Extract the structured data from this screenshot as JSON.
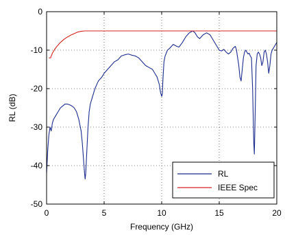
{
  "chart_data": {
    "type": "line",
    "xlabel": "Frequency (GHz)",
    "ylabel": "RL (dB)",
    "xlim": [
      0,
      20
    ],
    "ylim": [
      -50,
      0
    ],
    "xticks": [
      0,
      5,
      10,
      15,
      20
    ],
    "yticks": [
      0,
      -10,
      -20,
      -30,
      -40,
      -50
    ],
    "grid": true,
    "grid_style": "dotted",
    "legend_position": "bottom-right",
    "series": [
      {
        "name": "RL",
        "color": "#1a2a8c",
        "x": [
          0.0,
          0.1,
          0.2,
          0.3,
          0.4,
          0.5,
          0.6,
          0.8,
          1.0,
          1.2,
          1.4,
          1.6,
          1.8,
          2.0,
          2.2,
          2.4,
          2.6,
          2.8,
          3.0,
          3.1,
          3.2,
          3.3,
          3.35,
          3.4,
          3.5,
          3.6,
          3.7,
          3.8,
          4.0,
          4.2,
          4.5,
          4.8,
          5.0,
          5.3,
          5.6,
          5.9,
          6.2,
          6.5,
          6.8,
          7.1,
          7.4,
          7.7,
          8.0,
          8.3,
          8.6,
          8.9,
          9.2,
          9.4,
          9.6,
          9.8,
          9.9,
          10.0,
          10.05,
          10.1,
          10.2,
          10.3,
          10.5,
          10.7,
          11.0,
          11.3,
          11.5,
          11.8,
          12.1,
          12.4,
          12.7,
          12.9,
          13.1,
          13.3,
          13.6,
          13.9,
          14.2,
          14.5,
          14.8,
          15.0,
          15.2,
          15.4,
          15.6,
          15.8,
          16.0,
          16.2,
          16.4,
          16.5,
          16.6,
          16.7,
          16.8,
          16.9,
          17.0,
          17.1,
          17.2,
          17.3,
          17.4,
          17.5,
          17.6,
          17.7,
          17.8,
          17.9,
          18.0,
          18.05,
          18.1,
          18.2,
          18.3,
          18.4,
          18.5,
          18.6,
          18.7,
          18.8,
          18.9,
          19.0,
          19.1,
          19.2,
          19.3,
          19.4,
          19.5,
          19.6,
          19.7,
          19.8,
          19.9,
          20.0
        ],
        "y": [
          -42,
          -36,
          -32,
          -30,
          -31,
          -29,
          -28,
          -27,
          -26,
          -25,
          -24.5,
          -24,
          -24,
          -24.2,
          -24.5,
          -25,
          -26,
          -28,
          -31,
          -34,
          -38,
          -42,
          -43.5,
          -42,
          -36,
          -30,
          -26,
          -24,
          -22,
          -20,
          -18,
          -17,
          -16,
          -15,
          -14,
          -13,
          -12.5,
          -11.5,
          -11.2,
          -11,
          -11.3,
          -11.5,
          -12,
          -13,
          -14,
          -14.5,
          -15,
          -16,
          -17,
          -19,
          -21,
          -22,
          -21.5,
          -18,
          -13,
          -11.5,
          -10,
          -9.5,
          -8.5,
          -9,
          -9.2,
          -8,
          -6.5,
          -5.5,
          -5,
          -5.5,
          -6.5,
          -7,
          -6,
          -5.5,
          -6,
          -7.5,
          -9,
          -10,
          -10.2,
          -9.8,
          -10.5,
          -11,
          -10.5,
          -9.5,
          -9,
          -10,
          -12,
          -14,
          -17,
          -18,
          -15,
          -12,
          -10.5,
          -10,
          -10.5,
          -11,
          -10.8,
          -11.5,
          -12,
          -20,
          -34,
          -37,
          -30,
          -14,
          -11,
          -10.5,
          -11,
          -12,
          -14,
          -13,
          -10.5,
          -10,
          -11,
          -13,
          -16,
          -14,
          -11,
          -10,
          -9.5,
          -9,
          -8.5,
          -8
        ]
      },
      {
        "name": "IEEE Spec",
        "color": "#d62020",
        "x": [
          0.2,
          0.35,
          0.5,
          0.7,
          0.9,
          1.2,
          1.5,
          1.8,
          2.1,
          2.4,
          2.7,
          3.0,
          3.3,
          4.0,
          6.0,
          8.0,
          10.0,
          12.0,
          14.0,
          16.0,
          18.0,
          20.0
        ],
        "y": [
          -12,
          -12,
          -10.8,
          -9.8,
          -9.0,
          -8.0,
          -7.2,
          -6.6,
          -6.1,
          -5.7,
          -5.3,
          -5.1,
          -5.0,
          -5.0,
          -5.0,
          -5.0,
          -5.0,
          -5.0,
          -5.0,
          -5.0,
          -5.0,
          -5.0
        ]
      }
    ]
  }
}
